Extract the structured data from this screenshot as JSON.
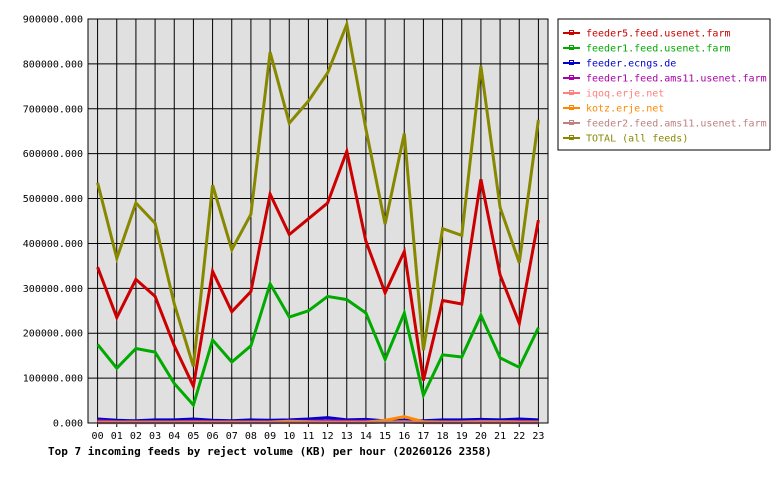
{
  "chart_data": {
    "type": "line",
    "title": "Top 7 incoming feeds by reject volume (KB) per hour (20260126 2358)",
    "xlabel": "",
    "ylabel": "",
    "categories": [
      "00",
      "01",
      "02",
      "03",
      "04",
      "05",
      "06",
      "07",
      "08",
      "09",
      "10",
      "11",
      "12",
      "13",
      "14",
      "15",
      "16",
      "17",
      "18",
      "19",
      "20",
      "21",
      "22",
      "23"
    ],
    "ylim": [
      0,
      900000
    ],
    "yticks": [
      0,
      100000,
      200000,
      300000,
      400000,
      500000,
      600000,
      700000,
      800000,
      900000
    ],
    "ytick_labels": [
      "0.000",
      "100000.000",
      "200000.000",
      "300000.000",
      "400000.000",
      "500000.000",
      "600000.000",
      "700000.000",
      "800000.000",
      "900000.000"
    ],
    "grid": true,
    "legend_position": "top-right",
    "series": [
      {
        "name": "feeder5.feed.usenet.farm",
        "color": "#cc0000",
        "values": [
          347000,
          235000,
          320000,
          282000,
          172000,
          82000,
          338000,
          248000,
          293000,
          510000,
          420000,
          455000,
          490000,
          605000,
          405000,
          290000,
          382000,
          95000,
          273000,
          265000,
          543000,
          330000,
          222000,
          452000
        ]
      },
      {
        "name": "feeder1.feed.usenet.farm",
        "color": "#00aa00",
        "values": [
          175000,
          122000,
          166000,
          158000,
          88000,
          40000,
          185000,
          136000,
          172000,
          310000,
          236000,
          250000,
          282000,
          275000,
          245000,
          142000,
          245000,
          62000,
          152000,
          147000,
          240000,
          145000,
          124000,
          212000
        ]
      },
      {
        "name": "feeder.ecngs.de",
        "color": "#0000cc",
        "values": [
          9000,
          6000,
          5000,
          7000,
          7000,
          9000,
          6000,
          5000,
          7000,
          6000,
          7000,
          9000,
          12000,
          7000,
          8000,
          5000,
          6000,
          5000,
          7000,
          7000,
          8000,
          7000,
          9000,
          7000
        ]
      },
      {
        "name": "feeder1.feed.ams11.usenet.farm",
        "color": "#aa00aa",
        "values": [
          5000,
          3000,
          3000,
          3000,
          3000,
          4000,
          3000,
          3000,
          3000,
          3000,
          4000,
          4000,
          5000,
          4000,
          4000,
          3000,
          3000,
          3000,
          3000,
          3000,
          4000,
          3000,
          4000,
          3000
        ]
      },
      {
        "name": "iqoq.erje.net",
        "color": "#ff8080",
        "values": [
          1000,
          1000,
          1000,
          1000,
          1000,
          1000,
          1000,
          1000,
          1000,
          1000,
          1000,
          1000,
          1000,
          1000,
          1000,
          2000,
          3000,
          1000,
          1000,
          1000,
          1000,
          1000,
          1000,
          1000
        ]
      },
      {
        "name": "kotz.erje.net",
        "color": "#ff8800",
        "values": [
          2000,
          2000,
          2000,
          2000,
          2000,
          2000,
          2000,
          2000,
          2000,
          2000,
          4000,
          3000,
          2000,
          2000,
          2000,
          6000,
          14000,
          3000,
          2000,
          2000,
          3000,
          3000,
          2000,
          2000
        ]
      },
      {
        "name": "feeder2.feed.ams11.usenet.farm",
        "color": "#c08080",
        "values": [
          1000,
          1000,
          1000,
          1000,
          1000,
          1000,
          1000,
          1000,
          1000,
          1000,
          2000,
          2000,
          2000,
          1000,
          1000,
          2000,
          2000,
          1000,
          1000,
          1000,
          2000,
          2000,
          1000,
          1000
        ]
      },
      {
        "name": "TOTAL (all feeds)",
        "color": "#888800",
        "values": [
          535000,
          367000,
          490000,
          445000,
          265000,
          126000,
          530000,
          386000,
          465000,
          826000,
          668000,
          717000,
          780000,
          888000,
          655000,
          443000,
          645000,
          162000,
          433000,
          418000,
          795000,
          480000,
          357000,
          675000
        ]
      }
    ]
  }
}
